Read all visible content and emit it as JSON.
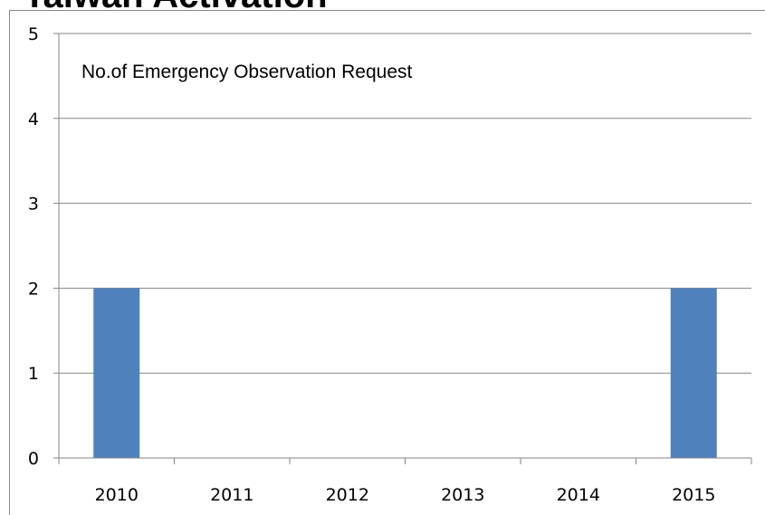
{
  "page": {
    "heading": "Taiwan Activation"
  },
  "chart_data": {
    "type": "bar",
    "annotation": "No.of Emergency Observation Request",
    "categories": [
      "2010",
      "2011",
      "2012",
      "2013",
      "2014",
      "2015"
    ],
    "values": [
      2,
      0,
      0,
      0,
      0,
      2
    ],
    "ylim": [
      0,
      5
    ],
    "yticks": [
      0,
      1,
      2,
      3,
      4,
      5
    ],
    "grid": true,
    "legend": "none",
    "colors": {
      "bar": "#4F81BD",
      "grid": "#868686",
      "axis": "#868686"
    }
  }
}
